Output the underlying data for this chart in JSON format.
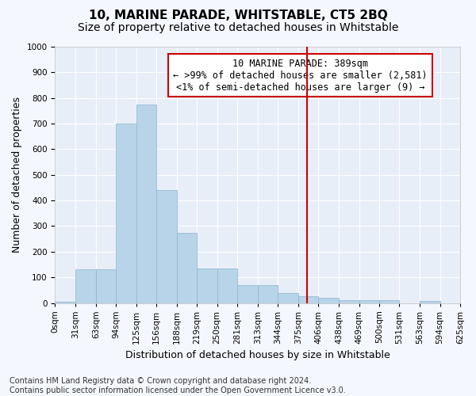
{
  "title": "10, MARINE PARADE, WHITSTABLE, CT5 2BQ",
  "subtitle": "Size of property relative to detached houses in Whitstable",
  "xlabel": "Distribution of detached houses by size in Whitstable",
  "ylabel": "Number of detached properties",
  "bar_edges": [
    0,
    31,
    63,
    94,
    125,
    156,
    188,
    219,
    250,
    281,
    313,
    344,
    375,
    406,
    438,
    469,
    500,
    531,
    563,
    594,
    625
  ],
  "bar_heights": [
    5,
    130,
    130,
    700,
    775,
    440,
    275,
    135,
    135,
    70,
    70,
    40,
    25,
    20,
    12,
    12,
    12,
    0,
    8,
    0
  ],
  "bar_color": "#b8d4e8",
  "bar_edgecolor": "#8ab4d0",
  "vline_x": 389,
  "vline_color": "#cc0000",
  "ylim": [
    0,
    1000
  ],
  "yticks": [
    0,
    100,
    200,
    300,
    400,
    500,
    600,
    700,
    800,
    900,
    1000
  ],
  "tick_labels": [
    "0sqm",
    "31sqm",
    "63sqm",
    "94sqm",
    "125sqm",
    "156sqm",
    "188sqm",
    "219sqm",
    "250sqm",
    "281sqm",
    "313sqm",
    "344sqm",
    "375sqm",
    "406sqm",
    "438sqm",
    "469sqm",
    "500sqm",
    "531sqm",
    "563sqm",
    "594sqm",
    "625sqm"
  ],
  "annotation_text": "10 MARINE PARADE: 389sqm\n← >99% of detached houses are smaller (2,581)\n<1% of semi-detached houses are larger (9) →",
  "footer_text": "Contains HM Land Registry data © Crown copyright and database right 2024.\nContains public sector information licensed under the Open Government Licence v3.0.",
  "bg_color": "#e8eef8",
  "grid_color": "#ffffff",
  "title_fontsize": 11,
  "subtitle_fontsize": 10,
  "axis_label_fontsize": 9,
  "tick_fontsize": 7.5,
  "annotation_fontsize": 8.5,
  "footer_fontsize": 7
}
